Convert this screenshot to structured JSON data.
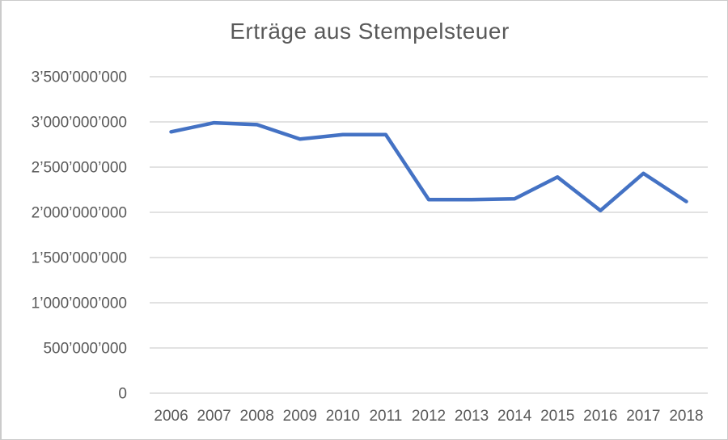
{
  "chart_data": {
    "type": "line",
    "title": "Erträge aus Stempelsteuer",
    "xlabel": "",
    "ylabel": "",
    "categories": [
      "2006",
      "2007",
      "2008",
      "2009",
      "2010",
      "2011",
      "2012",
      "2013",
      "2014",
      "2015",
      "2016",
      "2017",
      "2018"
    ],
    "series": [
      {
        "name": "Erträge aus Stempelsteuer",
        "values": [
          2890000000,
          2990000000,
          2970000000,
          2810000000,
          2860000000,
          2860000000,
          2140000000,
          2140000000,
          2150000000,
          2390000000,
          2020000000,
          2430000000,
          2120000000
        ]
      }
    ],
    "ylim": [
      0,
      3500000000
    ],
    "y_ticks": [
      {
        "value": 0,
        "label": "0"
      },
      {
        "value": 500000000,
        "label": "500’000’000"
      },
      {
        "value": 1000000000,
        "label": "1’000’000’000"
      },
      {
        "value": 1500000000,
        "label": "1’500’000’000"
      },
      {
        "value": 2000000000,
        "label": "2’000’000’000"
      },
      {
        "value": 2500000000,
        "label": "2’500’000’000"
      },
      {
        "value": 3000000000,
        "label": "3’000’000’000"
      },
      {
        "value": 3500000000,
        "label": "3’500’000’000"
      }
    ],
    "grid": "horizontal",
    "legend": false,
    "colors": {
      "line": "#4472C4",
      "gridline": "#D9D9D9",
      "text": "#595959",
      "background": "#FFFFFF",
      "border": "#CBCBCB"
    }
  }
}
